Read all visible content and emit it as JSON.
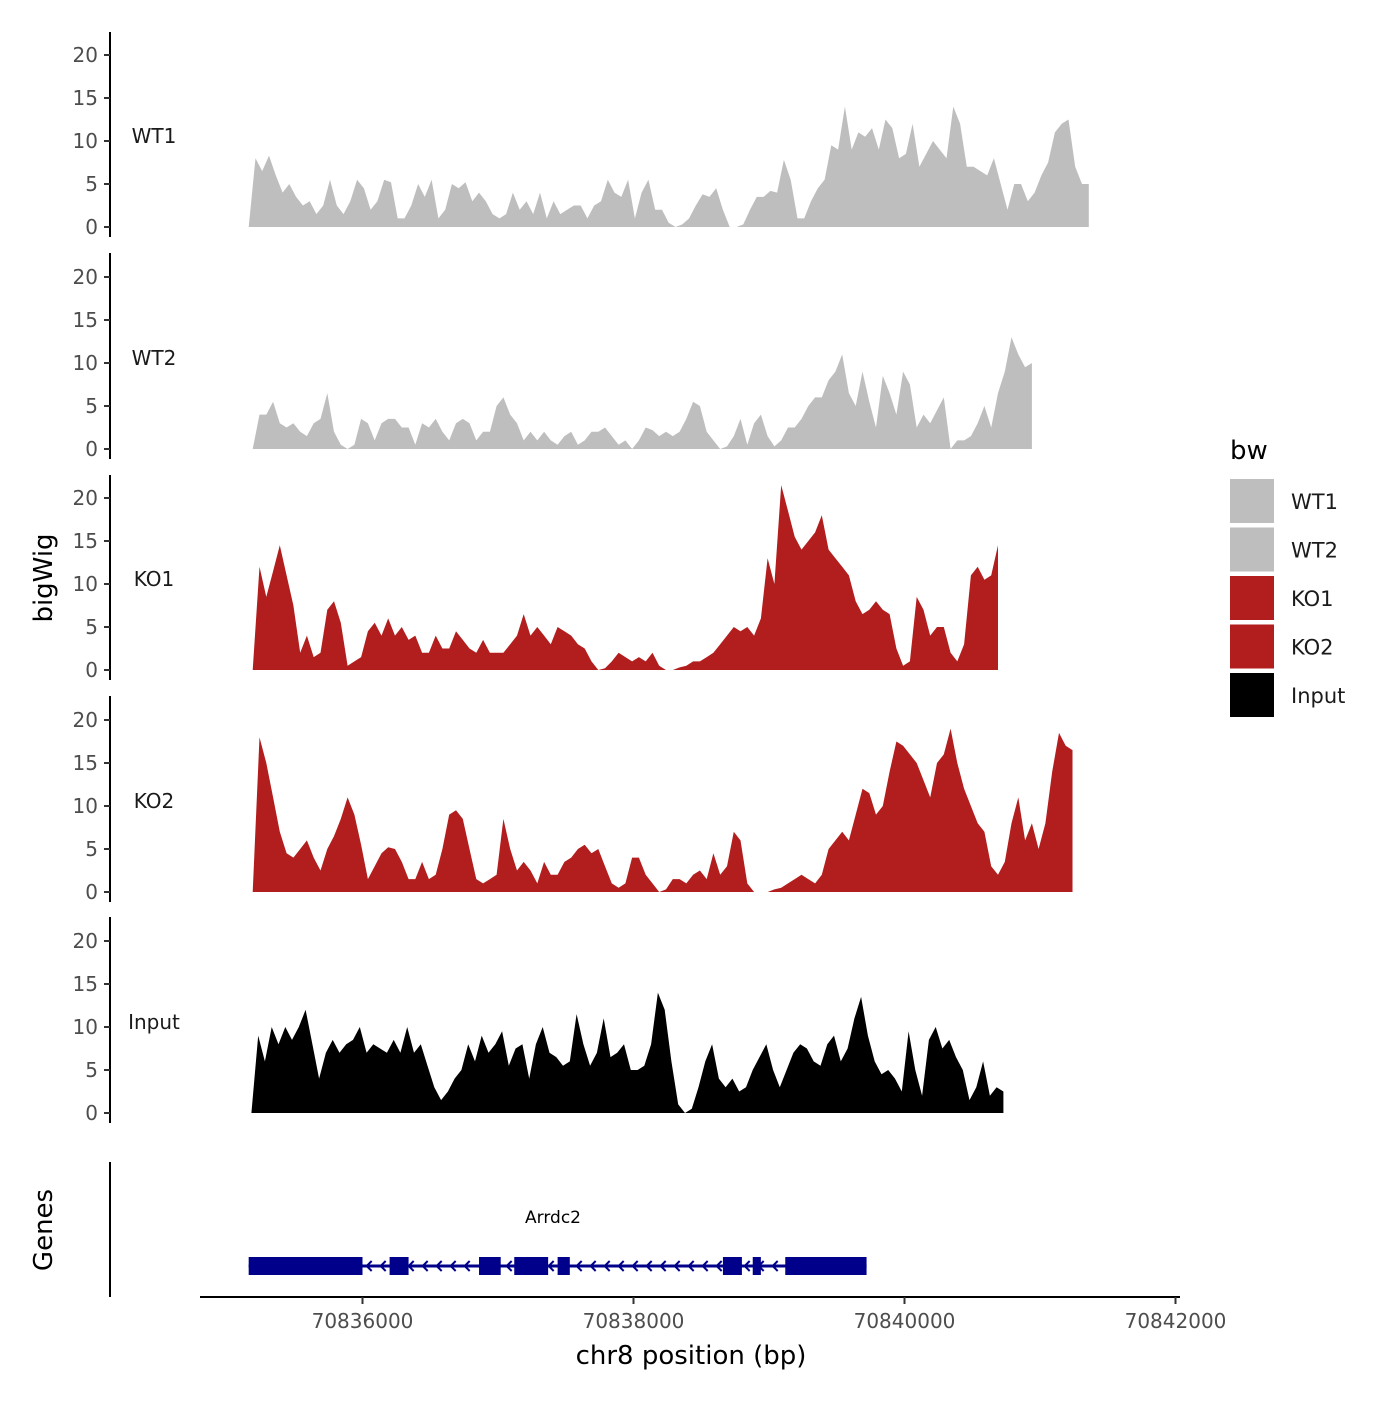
{
  "colors": {
    "WT": "#bebebe",
    "KO": "#b21e1e",
    "Input": "#000000",
    "gene": "#00008b",
    "axis": "#000000"
  },
  "chart_data": {
    "type": "area",
    "title": "",
    "ylabel": "bigWig",
    "genes_label": "Genes",
    "xlabel": "chr8 position (bp)",
    "xlim": [
      70834800,
      70842000
    ],
    "xticks": [
      70836000,
      70838000,
      70840000,
      70842000
    ],
    "xtick_labels": [
      "70836000",
      "70838000",
      "70840000",
      "70842000"
    ],
    "ylim": [
      0,
      23
    ],
    "yticks": [
      0,
      5,
      10,
      15,
      20
    ],
    "ytick_labels": [
      "0",
      "5",
      "10",
      "15",
      "20"
    ],
    "legend": {
      "title": "bw",
      "position": "right",
      "entries": [
        {
          "label": "WT1",
          "color": "#bebebe"
        },
        {
          "label": "WT2",
          "color": "#bebebe"
        },
        {
          "label": "KO1",
          "color": "#b21e1e"
        },
        {
          "label": "KO2",
          "color": "#b21e1e"
        },
        {
          "label": "Input",
          "color": "#000000"
        }
      ]
    },
    "tracks": [
      {
        "name": "WT1",
        "color": "#bebebe",
        "x_start": 70835160,
        "step": 50,
        "values": [
          0,
          8,
          6.5,
          8.3,
          6,
          4,
          5,
          3.5,
          2.5,
          3,
          1.5,
          2.5,
          5.5,
          2.5,
          1.5,
          3,
          5.5,
          4.5,
          2,
          3,
          5.5,
          5.2,
          1,
          1,
          2.5,
          5,
          3.5,
          5.5,
          1,
          2,
          5,
          4.5,
          5.2,
          3,
          4,
          3,
          1.5,
          1,
          1.5,
          4,
          2,
          3,
          1.5,
          4,
          1,
          3,
          1.5,
          2,
          2.5,
          2.5,
          1,
          2.5,
          3,
          5.5,
          4,
          3.5,
          5.5,
          1,
          4,
          5.5,
          2,
          2,
          0.5,
          0,
          0.3,
          1,
          2.5,
          3.8,
          3.5,
          4.5,
          2,
          0,
          0,
          0.3,
          2,
          3.5,
          3.5,
          4.2,
          4,
          7.8,
          5.5,
          1,
          1,
          3,
          4.5,
          5.5,
          9.5,
          9,
          14,
          9,
          11,
          10.5,
          11.5,
          9,
          12.5,
          11.5,
          8,
          8.5,
          12,
          7,
          8.5,
          10,
          9,
          8,
          14,
          12,
          7,
          7,
          6.5,
          6,
          8,
          5,
          2,
          5,
          5,
          3,
          4,
          6,
          7.5,
          11,
          12,
          12.5,
          7,
          5,
          5
        ]
      },
      {
        "name": "WT2",
        "color": "#bebebe",
        "x_start": 70835190,
        "step": 50,
        "values": [
          0,
          4,
          4,
          5.5,
          3,
          2.5,
          3,
          2,
          1.5,
          3,
          3.5,
          6.5,
          2,
          0.5,
          0,
          0.5,
          3.5,
          3,
          1,
          3,
          3.5,
          3.5,
          2.5,
          2.5,
          0.5,
          3,
          2.5,
          3.5,
          2,
          1,
          3,
          3.5,
          3,
          1,
          2,
          2,
          5,
          6,
          4,
          3,
          1,
          2,
          1,
          2,
          1,
          0.5,
          1.5,
          2,
          0.5,
          1,
          2,
          2,
          2.5,
          1.5,
          0.5,
          1,
          0,
          1,
          2.5,
          2.2,
          1.5,
          2,
          1.5,
          2,
          3.5,
          5.5,
          5,
          2,
          1,
          0,
          0.3,
          1.5,
          3.5,
          0.5,
          3,
          4,
          1.5,
          0.3,
          1,
          2.5,
          2.5,
          3.5,
          5,
          6,
          6,
          8,
          9,
          11,
          6.5,
          5,
          9,
          5.5,
          2.5,
          8.5,
          6.5,
          4,
          9,
          7.5,
          2.5,
          4,
          3,
          4.5,
          6,
          0,
          1,
          1,
          1.5,
          3,
          5,
          2.5,
          6.5,
          9,
          13,
          11,
          9.5,
          10
        ]
      },
      {
        "name": "KO1",
        "color": "#b21e1e",
        "x_start": 70835190,
        "step": 50,
        "values": [
          0,
          12,
          8.5,
          11.5,
          14.5,
          11,
          7.5,
          2,
          4,
          1.5,
          2,
          7,
          8,
          5.5,
          0.5,
          1,
          1.5,
          4.5,
          5.5,
          4,
          6,
          4,
          5,
          3.5,
          4,
          2,
          2,
          4,
          2.5,
          2.5,
          4.5,
          3.5,
          2.5,
          2,
          3.5,
          2,
          2,
          2,
          3,
          4,
          6.5,
          4,
          5,
          4,
          3,
          5,
          4.5,
          4,
          3,
          2.5,
          1,
          0,
          0.2,
          1,
          2,
          1.5,
          1,
          1.5,
          1,
          2,
          0.5,
          0,
          0,
          0.3,
          0.5,
          1,
          1,
          1.5,
          2,
          3,
          4,
          5,
          4.5,
          5,
          4,
          6,
          13,
          10,
          21.5,
          18.5,
          15.5,
          14,
          15,
          16,
          18,
          14,
          13,
          12,
          11,
          8,
          6.5,
          7,
          8,
          7,
          6.5,
          2.5,
          0.5,
          1,
          8.5,
          7,
          4,
          5,
          5,
          2,
          1,
          3,
          11,
          12,
          10.5,
          11,
          14.5
        ]
      },
      {
        "name": "KO2",
        "color": "#b21e1e",
        "x_start": 70835190,
        "step": 50,
        "values": [
          0,
          18,
          15,
          11,
          7,
          4.5,
          4,
          5,
          6,
          4,
          2.5,
          5,
          6.5,
          8.5,
          11,
          9,
          5.5,
          1.5,
          3,
          4.5,
          5.2,
          5,
          3.5,
          1.5,
          1.5,
          3.5,
          1.5,
          2,
          5,
          9,
          9.5,
          8.5,
          5,
          1.5,
          1,
          1.5,
          2,
          8.5,
          5,
          2.5,
          3.5,
          2.5,
          1,
          3.5,
          2,
          2,
          3.5,
          4,
          5,
          5.5,
          4.5,
          5,
          3,
          1,
          0.5,
          1,
          4,
          4,
          2,
          1,
          0,
          0.3,
          1.5,
          1.5,
          1,
          2,
          2.5,
          1.5,
          4.5,
          2,
          3,
          7,
          6,
          1,
          0,
          0,
          0,
          0.3,
          0.5,
          1,
          1.5,
          2,
          1.5,
          1,
          2,
          5,
          6,
          7,
          6,
          9,
          12,
          11.5,
          9,
          10,
          14,
          17.5,
          17,
          16,
          15,
          13,
          11,
          15,
          16,
          19,
          15,
          12,
          10,
          8,
          7,
          3,
          2,
          3.5,
          8,
          11,
          6,
          8,
          5,
          8,
          14,
          18.5,
          17,
          16.5
        ]
      },
      {
        "name": "Input",
        "color": "#000000",
        "x_start": 70835180,
        "step": 50,
        "values": [
          0,
          9,
          6,
          10,
          8,
          10,
          8.5,
          10,
          12,
          8,
          4,
          7,
          8.5,
          7,
          8,
          8.5,
          10,
          7,
          8,
          7.5,
          7,
          8.5,
          7,
          10,
          7,
          8,
          5.5,
          3,
          1.5,
          2.5,
          4,
          5,
          8,
          6,
          9,
          7,
          8,
          9.5,
          5.5,
          7.5,
          8,
          4,
          8,
          10,
          7,
          6.5,
          5.5,
          6,
          11.5,
          8,
          5.5,
          7,
          11,
          6.5,
          7,
          8,
          5,
          5,
          5.5,
          8,
          14,
          12,
          6,
          1,
          0,
          0.5,
          3,
          6,
          8,
          4,
          3,
          4,
          2.5,
          3,
          5,
          6.5,
          8,
          5,
          3,
          5,
          7,
          8,
          7.5,
          6,
          5.5,
          8,
          9,
          6,
          7.5,
          11,
          13.5,
          9,
          6,
          4.5,
          5,
          4,
          2.5,
          9.5,
          5,
          2,
          8.5,
          10,
          7.5,
          8.5,
          6.5,
          5,
          1.5,
          3,
          6,
          2,
          3,
          2.5
        ]
      }
    ],
    "genes": [
      {
        "name": "Arrdc2",
        "strand": "-",
        "start": 70835160,
        "end": 70839720,
        "exons": [
          [
            70835160,
            70836000
          ],
          [
            70836200,
            70836340
          ],
          [
            70836860,
            70837020
          ],
          [
            70837120,
            70837370
          ],
          [
            70837440,
            70837530
          ],
          [
            70838660,
            70838800
          ],
          [
            70838880,
            70838940
          ],
          [
            70839120,
            70839720
          ]
        ]
      }
    ]
  }
}
